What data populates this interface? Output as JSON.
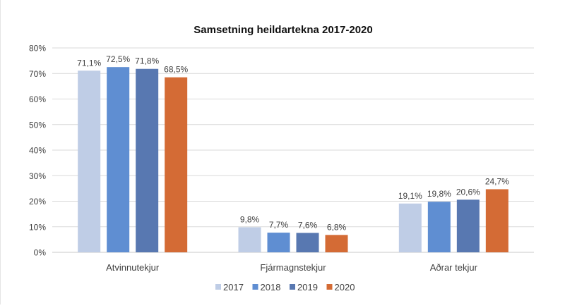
{
  "chart_data": {
    "type": "bar",
    "title": "Samsetning heildartekna 2017-2020",
    "xlabel": "",
    "ylabel": "",
    "ylim": [
      0,
      80
    ],
    "yticks": [
      "0%",
      "10%",
      "20%",
      "30%",
      "40%",
      "50%",
      "60%",
      "70%",
      "80%"
    ],
    "grid": true,
    "legend_position": "bottom",
    "categories": [
      "Atvinnutekjur",
      "Fjármagnstekjur",
      "Aðrar tekjur"
    ],
    "series": [
      {
        "name": "2017",
        "color": "#BFCDE6",
        "values": [
          71.1,
          9.8,
          19.1
        ],
        "labels": [
          "71,1%",
          "9,8%",
          "19,1%"
        ]
      },
      {
        "name": "2018",
        "color": "#5F8ED2",
        "values": [
          72.5,
          7.7,
          19.8
        ],
        "labels": [
          "72,5%",
          "7,7%",
          "19,8%"
        ]
      },
      {
        "name": "2019",
        "color": "#5878B1",
        "values": [
          71.8,
          7.6,
          20.6
        ],
        "labels": [
          "71,8%",
          "7,6%",
          "20,6%"
        ]
      },
      {
        "name": "2020",
        "color": "#D46B35",
        "values": [
          68.5,
          6.8,
          24.7
        ],
        "labels": [
          "68,5%",
          "6,8%",
          "24,7%"
        ]
      }
    ]
  }
}
